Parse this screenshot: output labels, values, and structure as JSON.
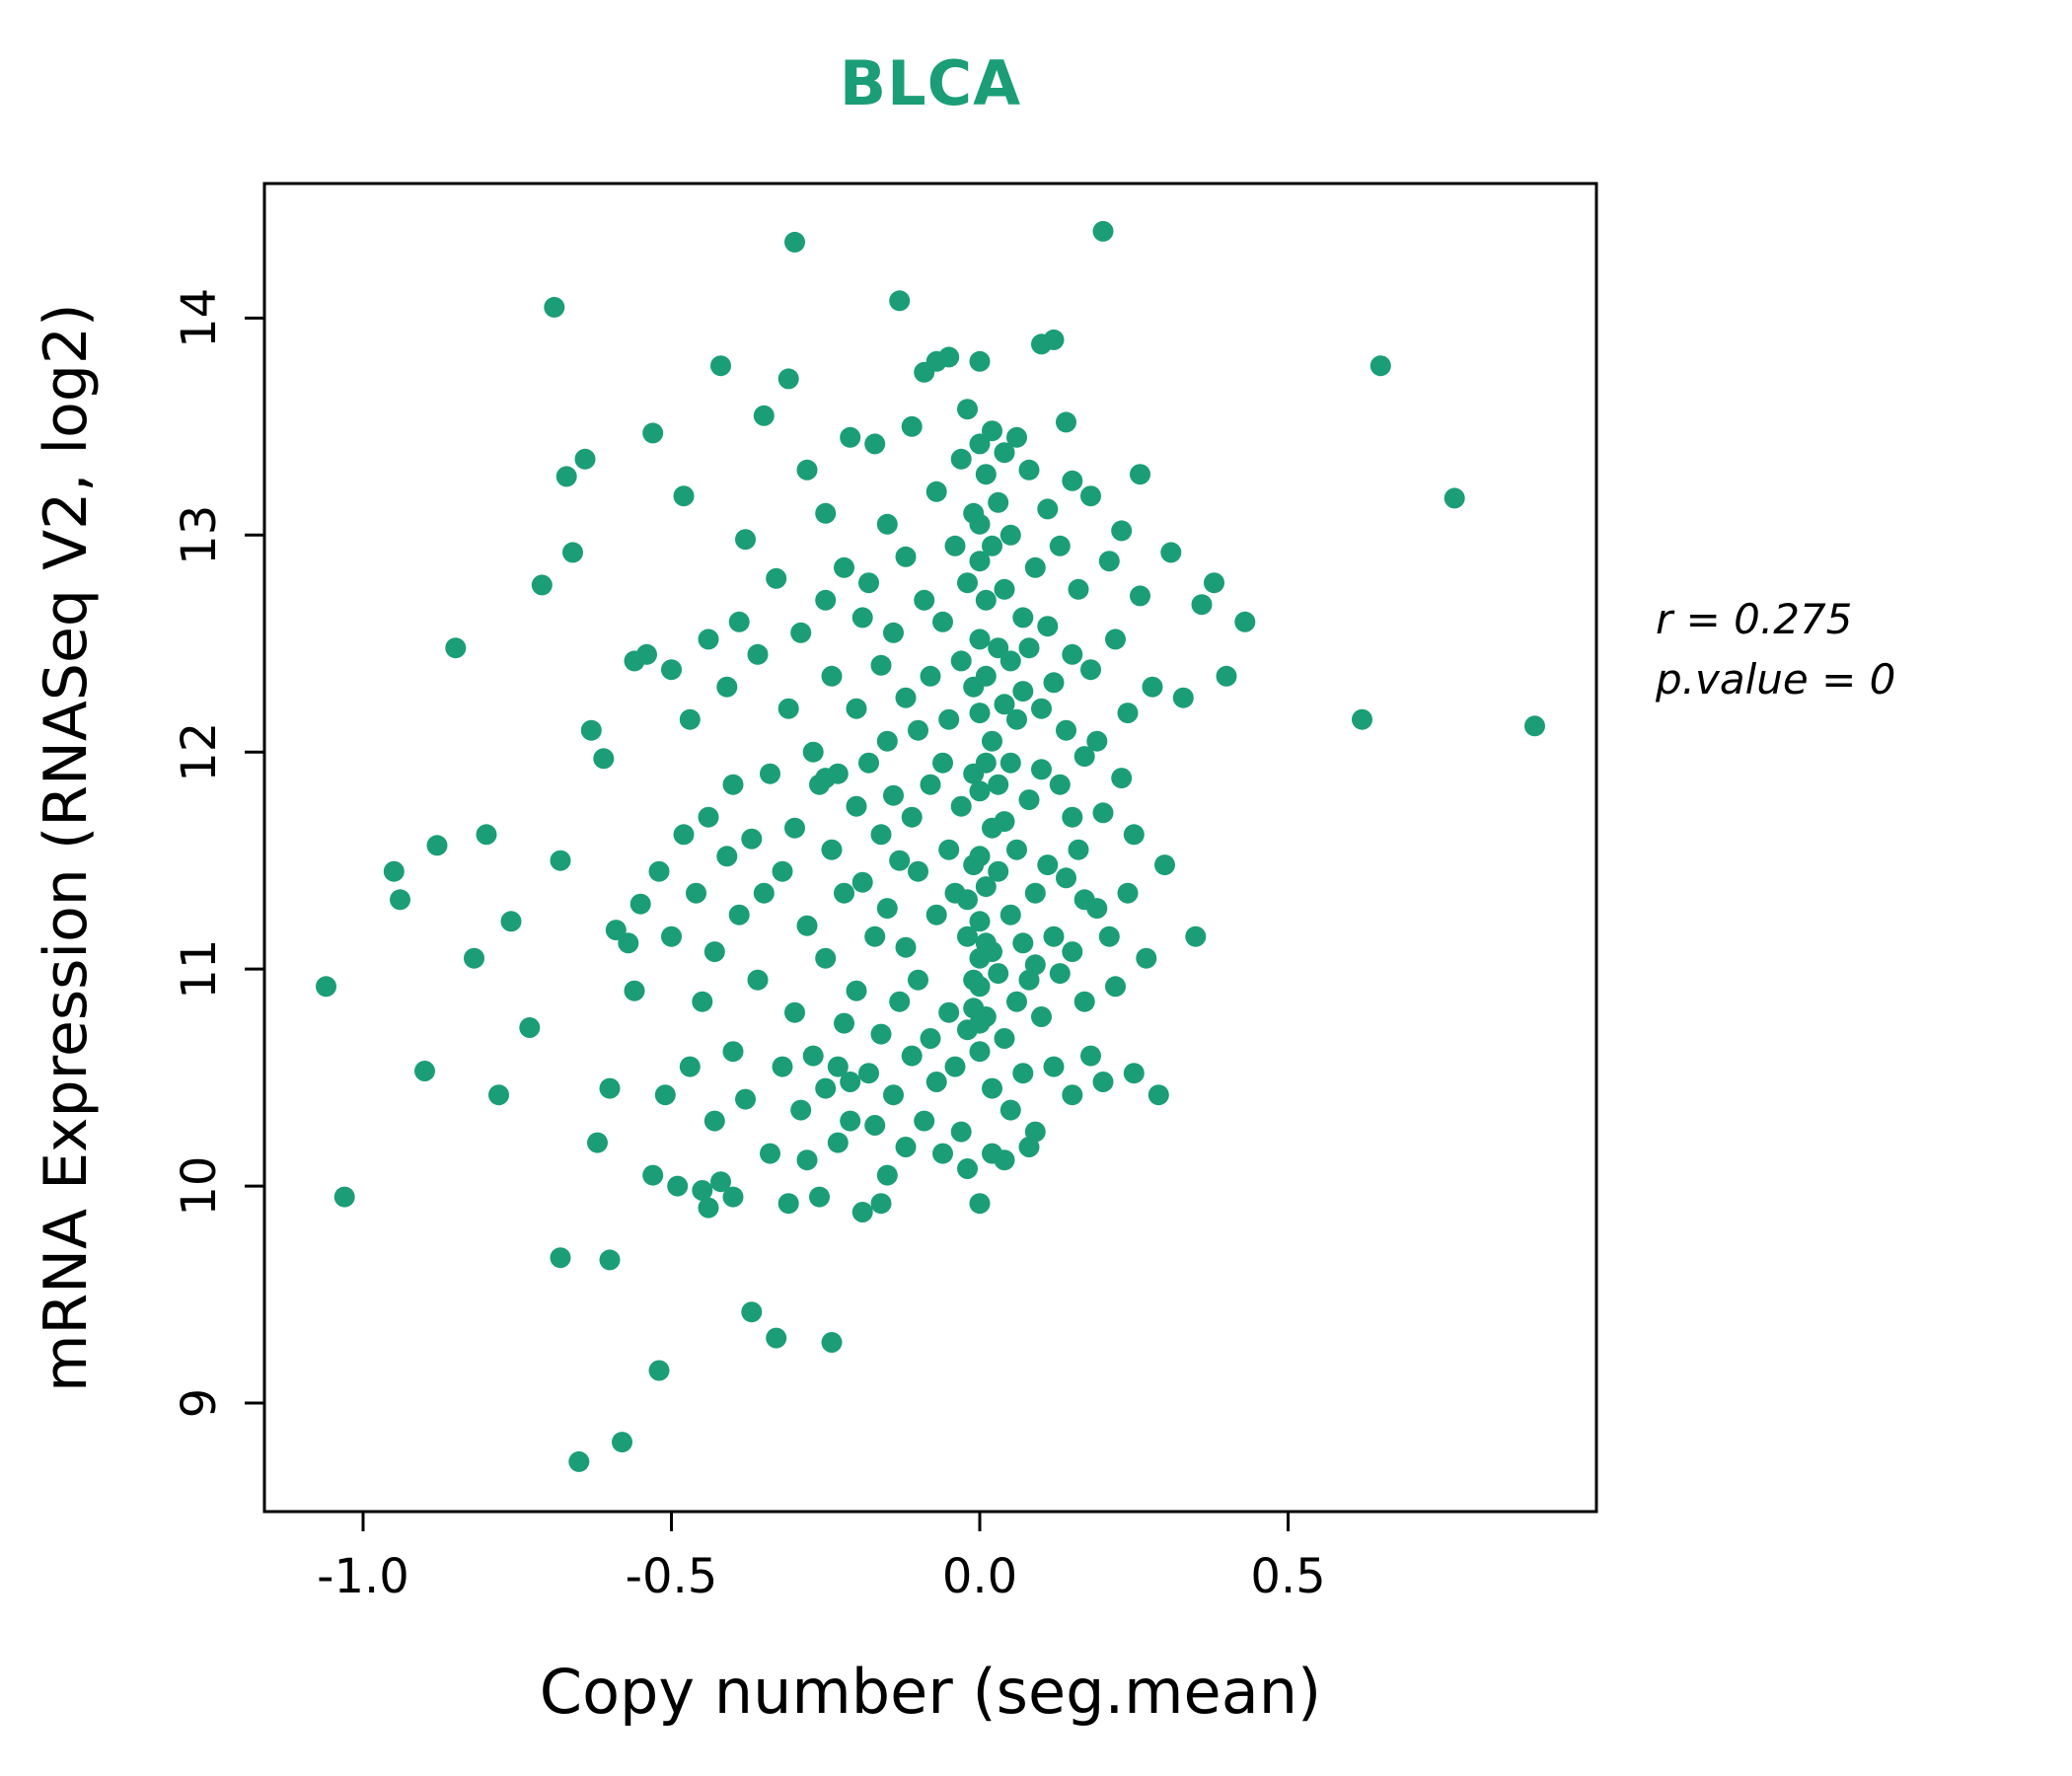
{
  "annotation": {
    "line1": "r = 0.275",
    "line2": "p.value = 0"
  },
  "chart_data": {
    "type": "scatter",
    "title": "BLCA",
    "title_color": "#1b9e77",
    "point_color": "#1b9e77",
    "xlabel": "Copy number (seg.mean)",
    "ylabel": "mRNA Expression (RNASeq V2, log2)",
    "xlim": [
      -1.16,
      1.0
    ],
    "ylim": [
      8.5,
      14.62
    ],
    "x_ticks": [
      -1.0,
      -0.5,
      0.0,
      0.5
    ],
    "x_tick_labels": [
      "-1.0",
      "-0.5",
      "0.0",
      "0.5"
    ],
    "y_ticks": [
      9,
      10,
      11,
      12,
      13,
      14
    ],
    "y_tick_labels": [
      "9",
      "10",
      "11",
      "12",
      "13",
      "14"
    ],
    "grid": false,
    "legend": "none",
    "correlation_r": 0.275,
    "p_value": 0,
    "points": [
      [
        -1.06,
        10.92
      ],
      [
        -1.03,
        9.95
      ],
      [
        -0.95,
        11.45
      ],
      [
        -0.94,
        11.32
      ],
      [
        -0.9,
        10.53
      ],
      [
        -0.88,
        11.57
      ],
      [
        -0.85,
        12.48
      ],
      [
        -0.82,
        11.05
      ],
      [
        -0.8,
        11.62
      ],
      [
        -0.78,
        10.42
      ],
      [
        -0.76,
        11.22
      ],
      [
        -0.73,
        10.73
      ],
      [
        -0.71,
        12.77
      ],
      [
        -0.69,
        14.05
      ],
      [
        -0.68,
        9.67
      ],
      [
        -0.67,
        13.27
      ],
      [
        -0.66,
        12.92
      ],
      [
        -0.65,
        8.73
      ],
      [
        -0.64,
        13.35
      ],
      [
        -0.63,
        12.1
      ],
      [
        -0.62,
        10.2
      ],
      [
        -0.61,
        11.97
      ],
      [
        -0.6,
        9.66
      ],
      [
        -0.6,
        10.45
      ],
      [
        -0.59,
        11.18
      ],
      [
        -0.58,
        8.82
      ],
      [
        -0.57,
        11.12
      ],
      [
        -0.56,
        12.42
      ],
      [
        -0.56,
        10.9
      ],
      [
        -0.55,
        11.3
      ],
      [
        -0.54,
        12.45
      ],
      [
        -0.53,
        13.47
      ],
      [
        -0.53,
        10.05
      ],
      [
        -0.52,
        11.45
      ],
      [
        -0.52,
        9.15
      ],
      [
        -0.51,
        10.42
      ],
      [
        -0.5,
        12.38
      ],
      [
        -0.5,
        11.15
      ],
      [
        -0.49,
        10.0
      ],
      [
        -0.48,
        13.18
      ],
      [
        -0.48,
        11.62
      ],
      [
        -0.47,
        10.55
      ],
      [
        -0.47,
        12.15
      ],
      [
        -0.46,
        11.35
      ],
      [
        -0.45,
        9.98
      ],
      [
        -0.45,
        10.85
      ],
      [
        -0.44,
        11.7
      ],
      [
        -0.44,
        12.52
      ],
      [
        -0.44,
        9.9
      ],
      [
        -0.43,
        10.3
      ],
      [
        -0.43,
        11.08
      ],
      [
        -0.42,
        13.78
      ],
      [
        -0.42,
        10.02
      ],
      [
        -0.41,
        11.52
      ],
      [
        -0.41,
        12.3
      ],
      [
        -0.4,
        9.95
      ],
      [
        -0.4,
        10.62
      ],
      [
        -0.4,
        11.85
      ],
      [
        -0.39,
        12.6
      ],
      [
        -0.39,
        11.25
      ],
      [
        -0.38,
        10.4
      ],
      [
        -0.38,
        12.98
      ],
      [
        -0.37,
        11.6
      ],
      [
        -0.37,
        9.42
      ],
      [
        -0.36,
        10.95
      ],
      [
        -0.36,
        12.45
      ],
      [
        -0.35,
        11.35
      ],
      [
        -0.35,
        13.55
      ],
      [
        -0.34,
        10.15
      ],
      [
        -0.34,
        11.9
      ],
      [
        -0.33,
        9.3
      ],
      [
        -0.33,
        12.8
      ],
      [
        -0.32,
        10.55
      ],
      [
        -0.32,
        11.45
      ],
      [
        -0.31,
        13.72
      ],
      [
        -0.31,
        12.2
      ],
      [
        -0.31,
        9.92
      ],
      [
        -0.3,
        14.35
      ],
      [
        -0.3,
        10.8
      ],
      [
        -0.3,
        11.65
      ],
      [
        -0.29,
        12.55
      ],
      [
        -0.29,
        10.35
      ],
      [
        -0.28,
        11.2
      ],
      [
        -0.28,
        13.3
      ],
      [
        -0.28,
        10.12
      ],
      [
        -0.27,
        12.0
      ],
      [
        -0.27,
        10.6
      ],
      [
        -0.26,
        11.85
      ],
      [
        -0.26,
        9.95
      ],
      [
        -0.25,
        12.7
      ],
      [
        -0.25,
        11.05
      ],
      [
        -0.25,
        10.45
      ],
      [
        -0.25,
        13.1
      ],
      [
        -0.25,
        11.88
      ],
      [
        -0.24,
        9.28
      ],
      [
        -0.24,
        11.55
      ],
      [
        -0.24,
        12.35
      ],
      [
        -0.23,
        10.2
      ],
      [
        -0.23,
        11.9
      ],
      [
        -0.23,
        10.55
      ],
      [
        -0.22,
        12.85
      ],
      [
        -0.22,
        10.75
      ],
      [
        -0.22,
        11.35
      ],
      [
        -0.21,
        13.45
      ],
      [
        -0.21,
        10.3
      ],
      [
        -0.21,
        10.48
      ],
      [
        -0.2,
        11.75
      ],
      [
        -0.2,
        12.2
      ],
      [
        -0.2,
        10.9
      ],
      [
        -0.19,
        11.4
      ],
      [
        -0.19,
        12.62
      ],
      [
        -0.19,
        9.88
      ],
      [
        -0.18,
        10.52
      ],
      [
        -0.18,
        11.95
      ],
      [
        -0.18,
        12.78
      ],
      [
        -0.17,
        11.15
      ],
      [
        -0.17,
        10.28
      ],
      [
        -0.17,
        13.42
      ],
      [
        -0.16,
        11.62
      ],
      [
        -0.16,
        12.4
      ],
      [
        -0.16,
        10.7
      ],
      [
        -0.16,
        9.92
      ],
      [
        -0.15,
        11.28
      ],
      [
        -0.15,
        12.05
      ],
      [
        -0.15,
        10.05
      ],
      [
        -0.15,
        13.05
      ],
      [
        -0.14,
        11.8
      ],
      [
        -0.14,
        10.42
      ],
      [
        -0.14,
        12.55
      ],
      [
        -0.13,
        11.5
      ],
      [
        -0.13,
        14.08
      ],
      [
        -0.13,
        10.85
      ],
      [
        -0.12,
        12.25
      ],
      [
        -0.12,
        11.1
      ],
      [
        -0.12,
        12.9
      ],
      [
        -0.12,
        10.18
      ],
      [
        -0.11,
        10.6
      ],
      [
        -0.11,
        11.7
      ],
      [
        -0.11,
        13.5
      ],
      [
        -0.1,
        12.1
      ],
      [
        -0.1,
        10.95
      ],
      [
        -0.1,
        11.45
      ],
      [
        -0.09,
        12.7
      ],
      [
        -0.09,
        10.3
      ],
      [
        -0.09,
        13.75
      ],
      [
        -0.08,
        11.85
      ],
      [
        -0.08,
        10.68
      ],
      [
        -0.08,
        12.35
      ],
      [
        -0.07,
        11.25
      ],
      [
        -0.07,
        13.2
      ],
      [
        -0.07,
        10.48
      ],
      [
        -0.07,
        13.8
      ],
      [
        -0.06,
        11.95
      ],
      [
        -0.06,
        12.6
      ],
      [
        -0.06,
        10.15
      ],
      [
        -0.05,
        11.55
      ],
      [
        -0.05,
        13.82
      ],
      [
        -0.05,
        10.8
      ],
      [
        -0.05,
        12.15
      ],
      [
        -0.04,
        11.35
      ],
      [
        -0.04,
        12.95
      ],
      [
        -0.04,
        10.55
      ],
      [
        -0.03,
        11.75
      ],
      [
        -0.03,
        13.35
      ],
      [
        -0.03,
        12.42
      ],
      [
        -0.03,
        10.25
      ],
      [
        -0.02,
        11.15
      ],
      [
        -0.02,
        12.78
      ],
      [
        -0.02,
        13.58
      ],
      [
        -0.02,
        10.72
      ],
      [
        -0.02,
        10.08
      ],
      [
        -0.02,
        11.32
      ],
      [
        -0.01,
        11.9
      ],
      [
        -0.01,
        12.3
      ],
      [
        -0.01,
        13.1
      ],
      [
        -0.01,
        10.95
      ],
      [
        -0.01,
        11.48
      ],
      [
        -0.01,
        10.82
      ],
      [
        0.0,
        13.42
      ],
      [
        0.0,
        12.88
      ],
      [
        0.0,
        12.52
      ],
      [
        0.0,
        12.18
      ],
      [
        0.0,
        11.82
      ],
      [
        0.0,
        11.52
      ],
      [
        0.0,
        11.22
      ],
      [
        0.0,
        10.92
      ],
      [
        0.0,
        10.62
      ],
      [
        0.0,
        13.05
      ],
      [
        0.0,
        9.92
      ],
      [
        0.0,
        11.05
      ],
      [
        0.0,
        10.75
      ],
      [
        0.0,
        13.8
      ],
      [
        0.01,
        12.7
      ],
      [
        0.01,
        11.95
      ],
      [
        0.01,
        11.38
      ],
      [
        0.01,
        10.78
      ],
      [
        0.01,
        13.28
      ],
      [
        0.01,
        12.35
      ],
      [
        0.01,
        11.12
      ],
      [
        0.02,
        11.65
      ],
      [
        0.02,
        12.05
      ],
      [
        0.02,
        10.45
      ],
      [
        0.02,
        12.95
      ],
      [
        0.02,
        13.48
      ],
      [
        0.02,
        11.08
      ],
      [
        0.02,
        10.15
      ],
      [
        0.03,
        12.48
      ],
      [
        0.03,
        11.85
      ],
      [
        0.03,
        10.98
      ],
      [
        0.03,
        13.15
      ],
      [
        0.03,
        11.45
      ],
      [
        0.04,
        12.22
      ],
      [
        0.04,
        10.68
      ],
      [
        0.04,
        13.38
      ],
      [
        0.04,
        11.68
      ],
      [
        0.04,
        12.75
      ],
      [
        0.04,
        10.12
      ],
      [
        0.05,
        11.25
      ],
      [
        0.05,
        12.42
      ],
      [
        0.05,
        10.35
      ],
      [
        0.05,
        13.0
      ],
      [
        0.05,
        11.95
      ],
      [
        0.06,
        12.15
      ],
      [
        0.06,
        10.85
      ],
      [
        0.06,
        13.45
      ],
      [
        0.06,
        11.55
      ],
      [
        0.07,
        12.62
      ],
      [
        0.07,
        11.12
      ],
      [
        0.07,
        10.52
      ],
      [
        0.07,
        12.28
      ],
      [
        0.08,
        11.78
      ],
      [
        0.08,
        13.3
      ],
      [
        0.08,
        10.95
      ],
      [
        0.08,
        12.48
      ],
      [
        0.08,
        10.18
      ],
      [
        0.09,
        11.35
      ],
      [
        0.09,
        12.85
      ],
      [
        0.09,
        10.25
      ],
      [
        0.09,
        11.02
      ],
      [
        0.1,
        11.92
      ],
      [
        0.1,
        13.88
      ],
      [
        0.1,
        12.2
      ],
      [
        0.1,
        10.78
      ],
      [
        0.11,
        11.48
      ],
      [
        0.11,
        12.58
      ],
      [
        0.11,
        13.12
      ],
      [
        0.12,
        13.9
      ],
      [
        0.12,
        11.15
      ],
      [
        0.12,
        12.32
      ],
      [
        0.12,
        10.55
      ],
      [
        0.13,
        11.85
      ],
      [
        0.13,
        12.95
      ],
      [
        0.13,
        10.98
      ],
      [
        0.14,
        11.42
      ],
      [
        0.14,
        12.1
      ],
      [
        0.14,
        13.52
      ],
      [
        0.15,
        11.7
      ],
      [
        0.15,
        10.42
      ],
      [
        0.15,
        12.45
      ],
      [
        0.15,
        11.08
      ],
      [
        0.15,
        13.25
      ],
      [
        0.16,
        11.55
      ],
      [
        0.16,
        12.75
      ],
      [
        0.17,
        10.85
      ],
      [
        0.17,
        11.98
      ],
      [
        0.17,
        11.32
      ],
      [
        0.18,
        12.38
      ],
      [
        0.18,
        10.6
      ],
      [
        0.18,
        13.18
      ],
      [
        0.19,
        11.28
      ],
      [
        0.19,
        12.05
      ],
      [
        0.2,
        14.4
      ],
      [
        0.2,
        11.72
      ],
      [
        0.2,
        10.48
      ],
      [
        0.21,
        12.88
      ],
      [
        0.21,
        11.15
      ],
      [
        0.22,
        12.52
      ],
      [
        0.22,
        10.92
      ],
      [
        0.23,
        11.88
      ],
      [
        0.23,
        13.02
      ],
      [
        0.24,
        11.35
      ],
      [
        0.24,
        12.18
      ],
      [
        0.25,
        10.52
      ],
      [
        0.25,
        11.62
      ],
      [
        0.26,
        12.72
      ],
      [
        0.26,
        13.28
      ],
      [
        0.27,
        11.05
      ],
      [
        0.28,
        12.3
      ],
      [
        0.29,
        10.42
      ],
      [
        0.3,
        11.48
      ],
      [
        0.31,
        12.92
      ],
      [
        0.33,
        12.25
      ],
      [
        0.35,
        11.15
      ],
      [
        0.36,
        12.68
      ],
      [
        0.38,
        12.78
      ],
      [
        0.4,
        12.35
      ],
      [
        0.43,
        12.6
      ],
      [
        0.62,
        12.15
      ],
      [
        0.65,
        13.78
      ],
      [
        0.77,
        13.17
      ],
      [
        0.9,
        12.12
      ],
      [
        -0.68,
        11.5
      ]
    ]
  }
}
